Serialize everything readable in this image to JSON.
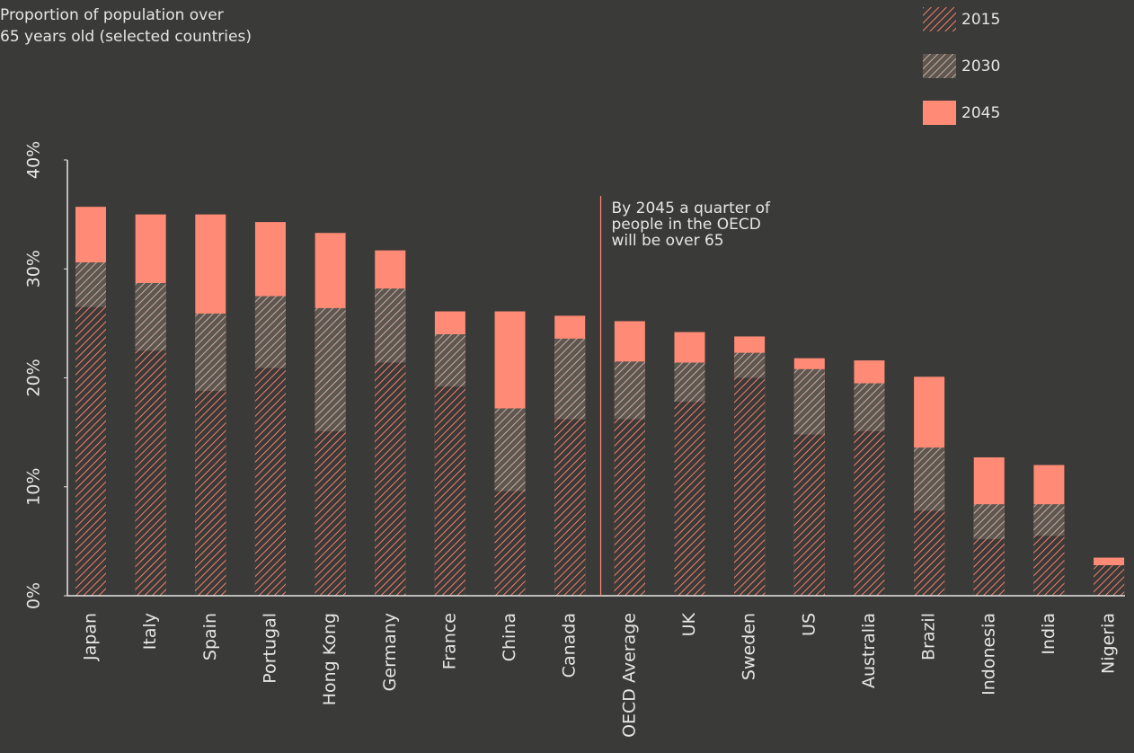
{
  "chart_data": {
    "type": "bar",
    "layout": "overlap",
    "title": [
      "Proportion of population over",
      "65 years old (selected countries)"
    ],
    "annotation": [
      "By 2045 a quarter of",
      "people in the OECD",
      "will be over 65"
    ],
    "annotation_category": "OECD Average",
    "categories": [
      "Japan",
      "Italy",
      "Spain",
      "Portugal",
      "Hong Kong",
      "Germany",
      "France",
      "China",
      "Canada",
      "OECD Average",
      "UK",
      "Sweden",
      "US",
      "Australia",
      "Brazil",
      "Indonesia",
      "India",
      "Nigeria"
    ],
    "series": [
      {
        "name": "2015",
        "color": "#f4806c",
        "hatch": true,
        "values": [
          26.5,
          22.5,
          18.8,
          20.9,
          15.1,
          21.4,
          19.2,
          9.6,
          16.2,
          16.2,
          17.8,
          20.0,
          14.8,
          15.1,
          7.8,
          5.2,
          5.5,
          2.8
        ]
      },
      {
        "name": "2030",
        "color": "#c9ada0",
        "hatch": true,
        "values": [
          30.6,
          28.7,
          25.9,
          27.5,
          26.4,
          28.2,
          24.0,
          17.2,
          23.6,
          21.5,
          21.4,
          22.3,
          20.8,
          19.5,
          13.6,
          8.4,
          8.4,
          2.8
        ]
      },
      {
        "name": "2045",
        "color": "#ff8a75",
        "hatch": false,
        "values": [
          35.7,
          35.0,
          35.0,
          34.3,
          33.3,
          31.7,
          26.1,
          26.1,
          25.7,
          25.2,
          24.2,
          23.8,
          21.8,
          21.6,
          20.1,
          12.7,
          12.0,
          3.5
        ]
      }
    ],
    "ylim": [
      0,
      40
    ],
    "yticks": [
      {
        "value": 0,
        "label": "0%"
      },
      {
        "value": 10,
        "label": "10%"
      },
      {
        "value": 20,
        "label": "20%"
      },
      {
        "value": 30,
        "label": "30%"
      },
      {
        "value": 40,
        "label": "40%"
      }
    ],
    "grid": false,
    "legend": "top-right"
  }
}
